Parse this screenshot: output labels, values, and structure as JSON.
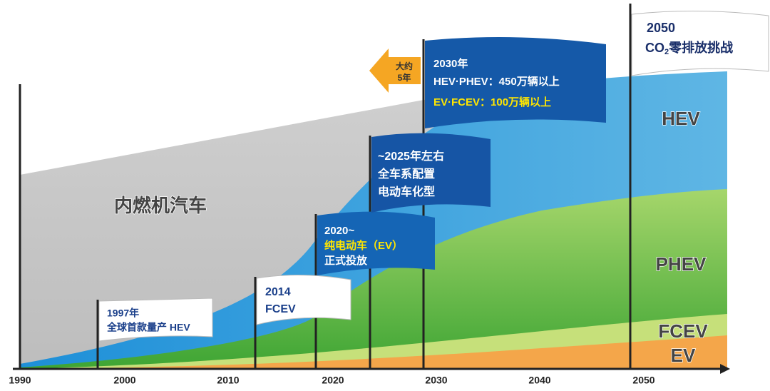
{
  "axis": {
    "ticks": [
      "1990",
      "2000",
      "2010",
      "2020",
      "2030",
      "2040",
      "2050"
    ]
  },
  "areas": {
    "ice": "内燃机汽车",
    "hev": "HEV",
    "phev": "PHEV",
    "fcev": "FCEV",
    "ev": "EV"
  },
  "flags": {
    "f1997": {
      "line1": "1997年",
      "line2": "全球首款量产 HEV"
    },
    "f2014": {
      "line1": "2014",
      "line2": "FCEV"
    },
    "f2020": {
      "line1": "2020~",
      "line2": "纯电动车（EV）",
      "line3": "正式投放"
    },
    "f2025": {
      "line1": "~2025年左右",
      "line2": "全车系配置",
      "line3": "电动车化型"
    },
    "f2030": {
      "line1": "2030年",
      "line2": "HEV·PHEV：450万辆以上",
      "line3": "EV·FCEV：100万辆以上"
    },
    "f2050": {
      "line1": "2050",
      "co": "CO",
      "sub": "2",
      "rest": "零排放挑战"
    }
  },
  "arrow": {
    "line1": "大约",
    "line2": "5年"
  }
}
